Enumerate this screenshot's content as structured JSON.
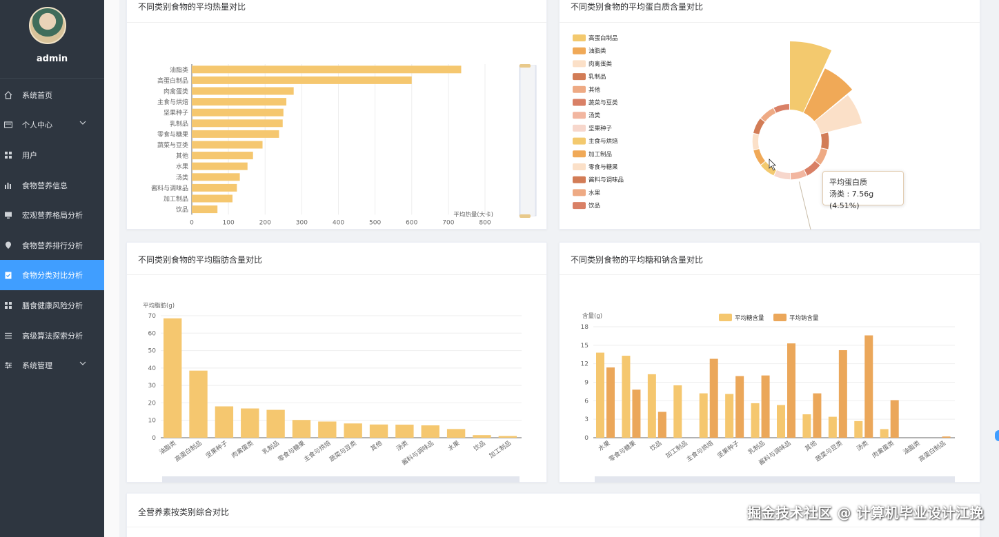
{
  "user": {
    "name": "admin"
  },
  "menu": [
    {
      "label": "系统首页",
      "icon": "home-icon",
      "expandable": false
    },
    {
      "label": "个人中心",
      "icon": "id-card-icon",
      "expandable": true
    },
    {
      "label": "用户",
      "icon": "grid-icon",
      "expandable": false
    },
    {
      "label": "食物营养信息",
      "icon": "bar-chart-icon",
      "expandable": false
    },
    {
      "label": "宏观营养格局分析",
      "icon": "monitor-icon",
      "expandable": false
    },
    {
      "label": "食物营养排行分析",
      "icon": "location-icon",
      "expandable": false
    },
    {
      "label": "食物分类对比分析",
      "icon": "clipboard-icon",
      "expandable": false,
      "active": true
    },
    {
      "label": "膳食健康风险分析",
      "icon": "grid-icon",
      "expandable": false
    },
    {
      "label": "高级算法探索分析",
      "icon": "list-icon",
      "expandable": false
    },
    {
      "label": "系统管理",
      "icon": "sliders-icon",
      "expandable": true
    }
  ],
  "cards": {
    "calories": {
      "title": "不同类别食物的平均热量对比"
    },
    "protein": {
      "title": "不同类别食物的平均蛋白质含量对比"
    },
    "fat": {
      "title": "不同类别食物的平均脂肪含量对比"
    },
    "sugar_sodium": {
      "title": "不同类别食物的平均糖和钠含量对比"
    },
    "overall": {
      "title": "全营养素按类别综合对比"
    }
  },
  "tooltip": {
    "title": "平均蛋白质",
    "text": "汤类 : 7.56g (4.51%)"
  },
  "watermark": "掘金技术社区 @ 计算机毕业设计江挽",
  "colors": {
    "accent": "#409eff",
    "bar": "#f5c76f",
    "bar2": "#eba75a",
    "sidebar": "#2e3640"
  },
  "chart_data": [
    {
      "type": "bar",
      "orientation": "horizontal",
      "categories": [
        "油脂类",
        "高蛋白制品",
        "肉禽蛋类",
        "主食与烘焙",
        "坚果种子",
        "乳制品",
        "零食与糖果",
        "蔬菜与豆类",
        "其他",
        "水果",
        "汤类",
        "酱料与调味品",
        "加工制品",
        "饮品"
      ],
      "values": [
        735,
        600,
        278,
        258,
        250,
        248,
        238,
        193,
        167,
        152,
        131,
        123,
        111,
        70
      ],
      "xlabel": "平均热量(大卡)",
      "xlim": [
        0,
        800
      ],
      "xticks": [
        0,
        100,
        200,
        300,
        400,
        500,
        600,
        700,
        800
      ],
      "color": "#f5c76f"
    },
    {
      "type": "pie",
      "subtype": "rose",
      "legend": [
        "高蛋白制品",
        "油脂类",
        "肉禽蛋类",
        "乳制品",
        "其他",
        "蔬菜与豆类",
        "汤类",
        "坚果种子",
        "主食与烘焙",
        "加工制品",
        "零食与糖果",
        "酱料与调味品",
        "水果",
        "饮品"
      ],
      "legend_colors": [
        "#f3c96e",
        "#f0a957",
        "#fbe0c8",
        "#d27c56",
        "#eeaa84",
        "#d98066",
        "#f2b6a0",
        "#f7d7cc",
        "#f3c96e",
        "#f0a957",
        "#fbe0c8",
        "#d27c56",
        "#eeaa84",
        "#d98066"
      ],
      "slices": [
        {
          "label": "高蛋白制品",
          "radius": 1.0
        },
        {
          "label": "油脂类",
          "radius": 0.72
        },
        {
          "label": "肉禽蛋类",
          "radius": 0.62
        },
        {
          "label": "乳制品",
          "radius": 0.38
        },
        {
          "label": "其他",
          "radius": 0.35
        },
        {
          "label": "蔬菜与豆类",
          "radius": 0.35
        },
        {
          "label": "汤类",
          "radius": 0.34,
          "value": 7.56,
          "percent": 4.51
        },
        {
          "label": "坚果种子",
          "radius": 0.33
        },
        {
          "label": "主食与烘焙",
          "radius": 0.32
        },
        {
          "label": "加工制品",
          "radius": 0.3
        },
        {
          "label": "零食与糖果",
          "radius": 0.3
        },
        {
          "label": "酱料与调味品",
          "radius": 0.3
        },
        {
          "label": "水果",
          "radius": 0.29
        },
        {
          "label": "饮品",
          "radius": 0.29
        }
      ]
    },
    {
      "type": "bar",
      "categories": [
        "油脂类",
        "高蛋白制品",
        "坚果种子",
        "肉禽蛋类",
        "乳制品",
        "零食与糖果",
        "主食与烘焙",
        "蔬菜与豆类",
        "其他",
        "汤类",
        "酱料与调味品",
        "水果",
        "饮品",
        "加工制品"
      ],
      "values": [
        68.5,
        38.5,
        18,
        16.8,
        16,
        10.2,
        9.3,
        8.2,
        7.6,
        7.5,
        7.1,
        5,
        1.5,
        1
      ],
      "ylabel": "平均脂肪(g)",
      "ylim": [
        0,
        70
      ],
      "yticks": [
        0,
        10,
        20,
        30,
        40,
        50,
        60,
        70
      ],
      "color": "#f5c76f"
    },
    {
      "type": "bar",
      "categories": [
        "水果",
        "零食与糖果",
        "饮品",
        "加工制品",
        "主食与烘焙",
        "坚果种子",
        "乳制品",
        "酱料与调味品",
        "其他",
        "蔬菜与豆类",
        "汤类",
        "肉禽蛋类",
        "油脂类",
        "高蛋白制品"
      ],
      "series": [
        {
          "name": "平均糖含量",
          "values": [
            13.8,
            13.3,
            10.3,
            8.5,
            7.2,
            7.1,
            5.6,
            5.3,
            3.8,
            3.4,
            2.7,
            1.4,
            0,
            0
          ],
          "color": "#f5c76f"
        },
        {
          "name": "平均钠含量",
          "values": [
            11.4,
            7.8,
            4.2,
            0,
            12.8,
            10,
            10.1,
            15.3,
            7.2,
            14.2,
            16.6,
            6.1,
            0,
            0.2
          ],
          "color": "#eba75a"
        }
      ],
      "ylabel": "含量(g)",
      "ylim": [
        0,
        18
      ],
      "yticks": [
        0,
        3,
        6,
        9,
        12,
        15,
        18
      ]
    }
  ]
}
